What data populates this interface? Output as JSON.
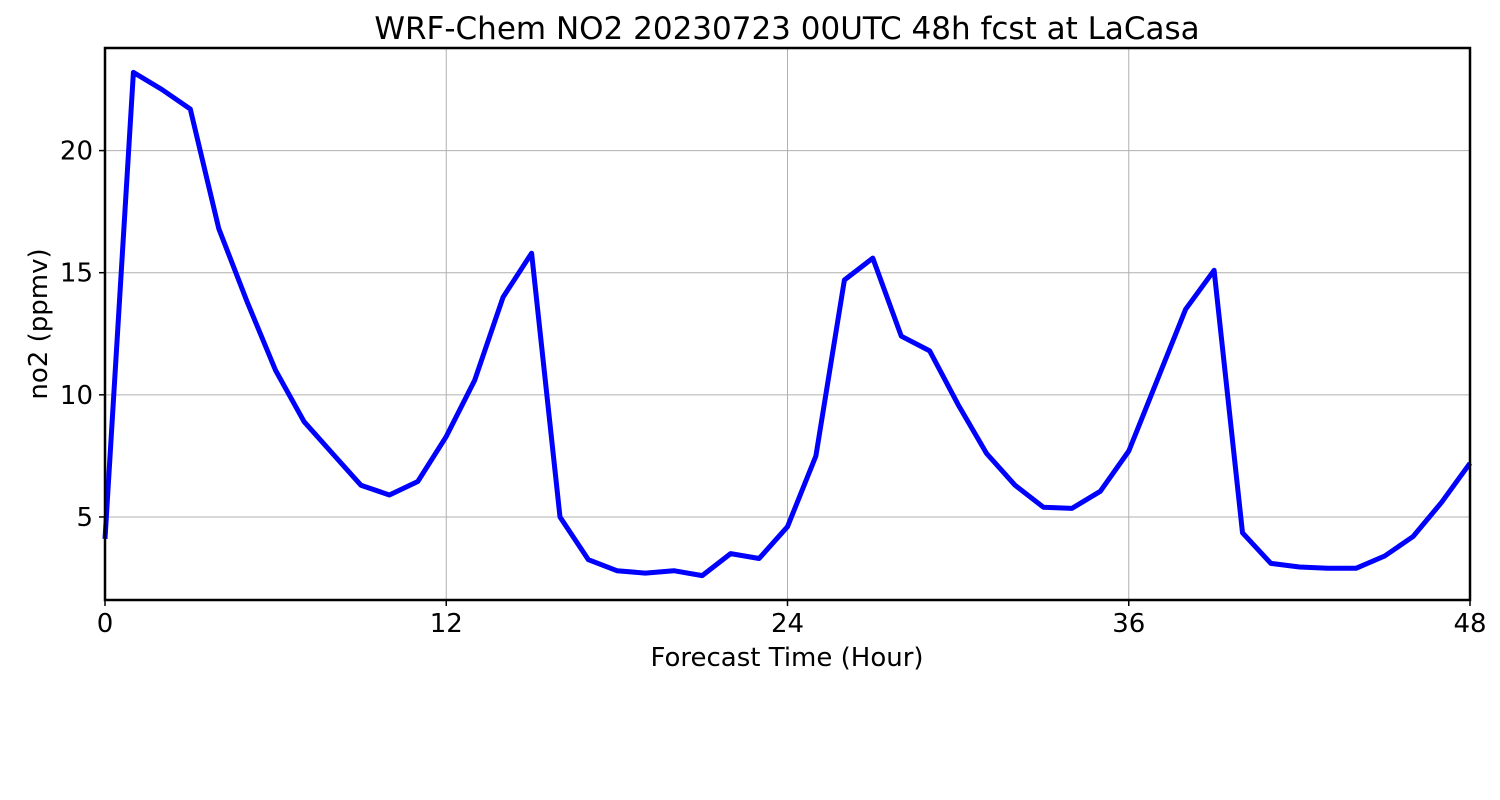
{
  "chart_data": {
    "type": "line",
    "title": "WRF-Chem NO2  20230723 00UTC 48h fcst at LaCasa",
    "xlabel": "Forecast Time (Hour)",
    "ylabel": "no2  (ppmv)",
    "xlim": [
      0,
      48
    ],
    "ylim": [
      1.6,
      24.2
    ],
    "xticks": [
      0,
      12,
      24,
      36,
      48
    ],
    "yticks": [
      5,
      10,
      15,
      20
    ],
    "grid": true,
    "line_color": "#0000ff",
    "series": [
      {
        "x": [
          0,
          1,
          2,
          3,
          4,
          5,
          6,
          7,
          8,
          9,
          10,
          11,
          12,
          13,
          14,
          15,
          16,
          17,
          18,
          19,
          20,
          21,
          22,
          23,
          24,
          25,
          26,
          27,
          28,
          29,
          30,
          31,
          32,
          33,
          34,
          35,
          36,
          37,
          38,
          39,
          40,
          41,
          42,
          43,
          44,
          45,
          46,
          47,
          48
        ],
        "values": [
          4.1,
          23.2,
          22.5,
          21.7,
          16.8,
          13.8,
          11.0,
          8.9,
          7.6,
          6.3,
          5.9,
          6.45,
          8.3,
          10.6,
          14.0,
          15.8,
          5.0,
          3.25,
          2.8,
          2.7,
          2.8,
          2.6,
          3.5,
          3.3,
          4.6,
          7.5,
          14.7,
          15.6,
          12.4,
          11.8,
          9.6,
          7.6,
          6.3,
          5.4,
          5.35,
          6.05,
          7.7,
          10.6,
          13.5,
          15.1,
          4.35,
          3.1,
          2.95,
          2.9,
          2.9,
          3.4,
          4.2,
          5.6,
          7.2
        ]
      }
    ]
  }
}
